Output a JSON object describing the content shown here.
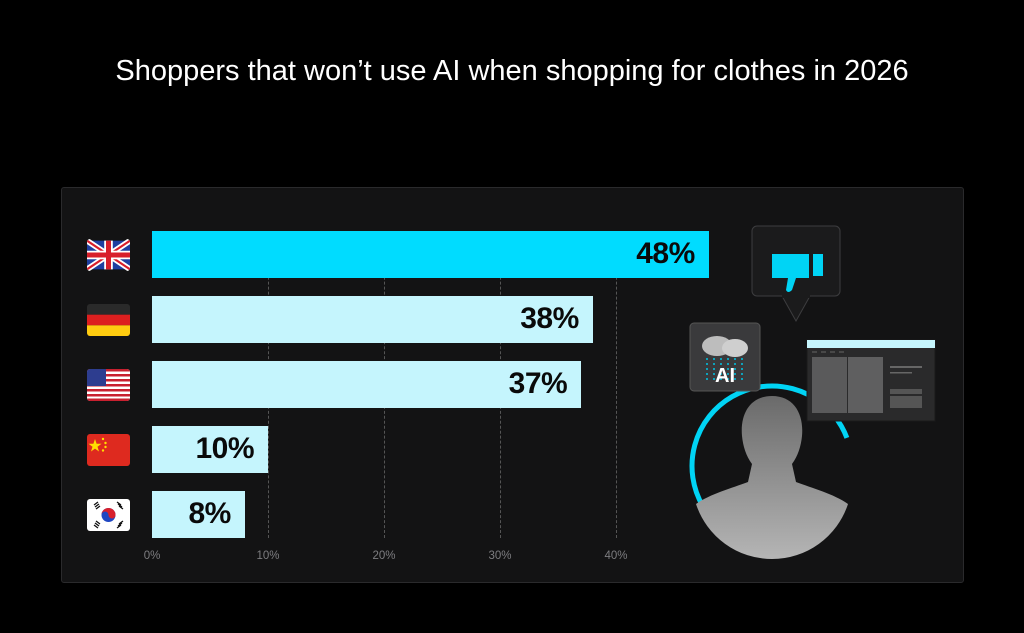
{
  "chart_data": {
    "type": "bar",
    "orientation": "horizontal",
    "title": "Shoppers that won’t use AI when shopping for clothes in 2026",
    "categories": [
      "United Kingdom",
      "Germany",
      "United States",
      "China",
      "South Korea"
    ],
    "category_icons": [
      "uk-flag-icon",
      "germany-flag-icon",
      "usa-flag-icon",
      "china-flag-icon",
      "south-korea-flag-icon"
    ],
    "values": [
      48,
      38,
      37,
      10,
      8
    ],
    "data_labels": [
      "48%",
      "38%",
      "37%",
      "10%",
      "8%"
    ],
    "xlim": [
      0,
      48
    ],
    "xticks": [
      0,
      10,
      20,
      30,
      40
    ],
    "xtick_labels": [
      "0%",
      "10%",
      "20%",
      "30%",
      "40%"
    ],
    "grid": "vertical dashed",
    "highlight_index": 0,
    "colors": {
      "highlight": "#00dcff",
      "bar": "#c5f5fd",
      "background": "#000000",
      "panel": "#131314"
    }
  },
  "illustration": {
    "ai_badge_text": "AI",
    "icons": [
      "thumbs-down-icon",
      "ai-cloud-icon",
      "person-silhouette-icon",
      "browser-window-icon"
    ]
  }
}
